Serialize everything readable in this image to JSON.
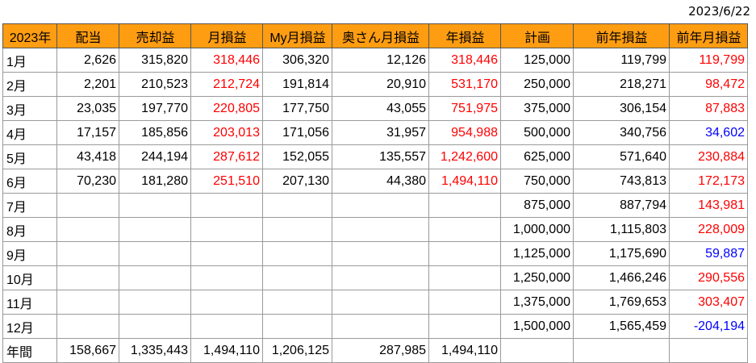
{
  "date": "2023/6/22",
  "headers": [
    "2023年",
    "配当",
    "売却益",
    "月損益",
    "My月損益",
    "奥さん月損益",
    "年損益",
    "計画",
    "前年損益",
    "前年月損益"
  ],
  "rows": [
    {
      "label": "1月",
      "cells": [
        "2,626",
        "315,820",
        "318,446",
        "306,320",
        "12,126",
        "318,446",
        "125,000",
        "119,799",
        "119,799"
      ]
    },
    {
      "label": "2月",
      "cells": [
        "2,201",
        "210,523",
        "212,724",
        "191,814",
        "20,910",
        "531,170",
        "250,000",
        "218,271",
        "98,472"
      ]
    },
    {
      "label": "3月",
      "cells": [
        "23,035",
        "197,770",
        "220,805",
        "177,750",
        "43,055",
        "751,975",
        "375,000",
        "306,154",
        "87,883"
      ]
    },
    {
      "label": "4月",
      "cells": [
        "17,157",
        "185,856",
        "203,013",
        "171,056",
        "31,957",
        "954,988",
        "500,000",
        "340,756",
        "34,602"
      ]
    },
    {
      "label": "5月",
      "cells": [
        "43,418",
        "244,194",
        "287,612",
        "152,055",
        "135,557",
        "1,242,600",
        "625,000",
        "571,640",
        "230,884"
      ]
    },
    {
      "label": "6月",
      "cells": [
        "70,230",
        "181,280",
        "251,510",
        "207,130",
        "44,380",
        "1,494,110",
        "750,000",
        "743,813",
        "172,173"
      ]
    },
    {
      "label": "7月",
      "cells": [
        "",
        "",
        "",
        "",
        "",
        "",
        "875,000",
        "887,794",
        "143,981"
      ]
    },
    {
      "label": "8月",
      "cells": [
        "",
        "",
        "",
        "",
        "",
        "",
        "1,000,000",
        "1,115,803",
        "228,009"
      ]
    },
    {
      "label": "9月",
      "cells": [
        "",
        "",
        "",
        "",
        "",
        "",
        "1,125,000",
        "1,175,690",
        "59,887"
      ]
    },
    {
      "label": "10月",
      "cells": [
        "",
        "",
        "",
        "",
        "",
        "",
        "1,250,000",
        "1,466,246",
        "290,556"
      ]
    },
    {
      "label": "11月",
      "cells": [
        "",
        "",
        "",
        "",
        "",
        "",
        "1,375,000",
        "1,769,653",
        "303,407"
      ]
    },
    {
      "label": "12月",
      "cells": [
        "",
        "",
        "",
        "",
        "",
        "",
        "1,500,000",
        "1,565,459",
        "-204,194"
      ]
    },
    {
      "label": "年間",
      "cells": [
        "158,667",
        "1,335,443",
        "1,494,110",
        "1,206,125",
        "287,985",
        "1,494,110",
        "",
        "",
        ""
      ]
    }
  ],
  "colors": {
    "header_bg": "#ff9d12",
    "positive_red": "#ff0000",
    "blue": "#0000ff"
  },
  "color_map": {
    "0": [
      null,
      null,
      "red",
      null,
      null,
      "red",
      null,
      null,
      "red"
    ],
    "1": [
      null,
      null,
      "red",
      null,
      null,
      "red",
      null,
      null,
      "red"
    ],
    "2": [
      null,
      null,
      "red",
      null,
      null,
      "red",
      null,
      null,
      "red"
    ],
    "3": [
      null,
      null,
      "red",
      null,
      null,
      "red",
      null,
      null,
      "blue"
    ],
    "4": [
      null,
      null,
      "red",
      null,
      null,
      "red",
      null,
      null,
      "red"
    ],
    "5": [
      null,
      null,
      "red",
      null,
      null,
      "red",
      null,
      null,
      "red"
    ],
    "6": [
      null,
      null,
      null,
      null,
      null,
      null,
      null,
      null,
      "red"
    ],
    "7": [
      null,
      null,
      null,
      null,
      null,
      null,
      null,
      null,
      "red"
    ],
    "8": [
      null,
      null,
      null,
      null,
      null,
      null,
      null,
      null,
      "blue"
    ],
    "9": [
      null,
      null,
      null,
      null,
      null,
      null,
      null,
      null,
      "red"
    ],
    "10": [
      null,
      null,
      null,
      null,
      null,
      null,
      null,
      null,
      "red"
    ],
    "11": [
      null,
      null,
      null,
      null,
      null,
      null,
      null,
      null,
      "blue"
    ],
    "12": [
      null,
      null,
      null,
      null,
      null,
      null,
      null,
      null,
      null
    ]
  }
}
